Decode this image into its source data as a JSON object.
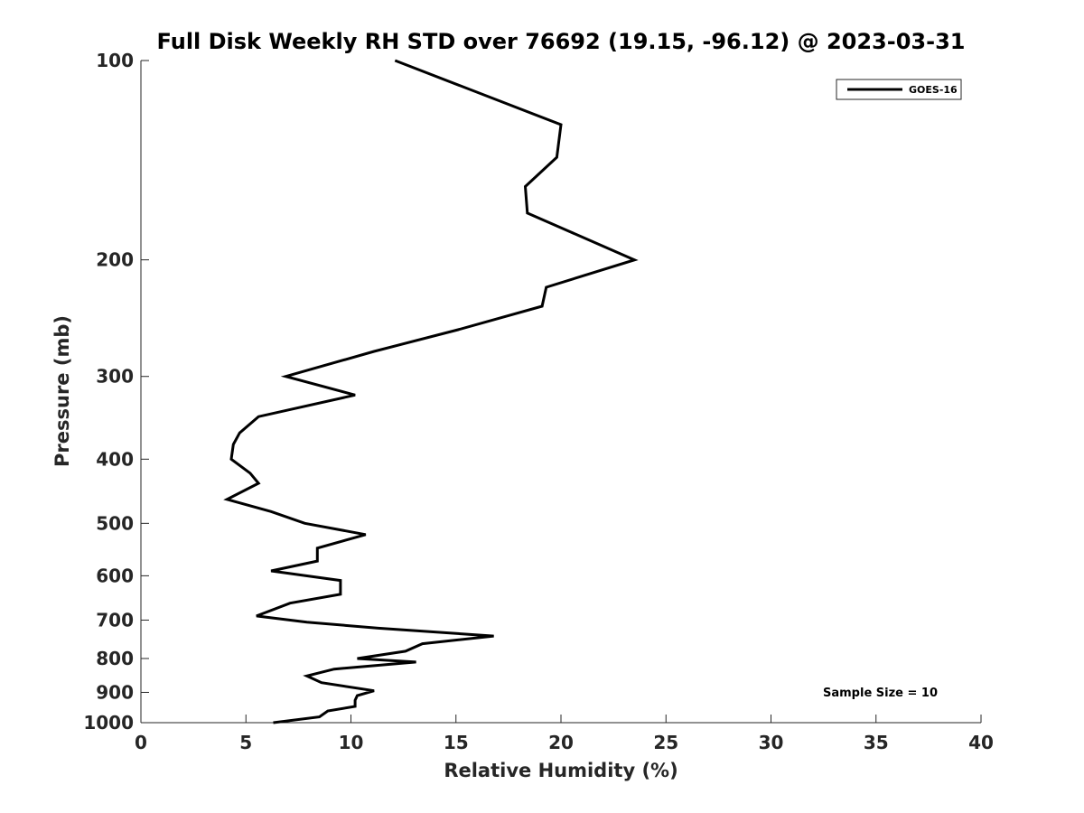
{
  "chart_data": {
    "type": "line",
    "title": "Full Disk Weekly RH STD over 76692 (19.15, -96.12) @ 2023-03-31",
    "xlabel": "Relative Humidity (%)",
    "ylabel": "Pressure (mb)",
    "xlim": [
      0,
      40
    ],
    "ylim": [
      100,
      1000
    ],
    "y_scale": "log",
    "y_reversed": true,
    "x_ticks": [
      "0",
      "5",
      "10",
      "15",
      "20",
      "25",
      "30",
      "35",
      "40"
    ],
    "y_ticks": [
      "100",
      "200",
      "300",
      "400",
      "500",
      "600",
      "700",
      "800",
      "900",
      "1000"
    ],
    "grid": false,
    "legend_position": "top-right",
    "annotation": "Sample Size = 10",
    "series": [
      {
        "name": "GOES-16",
        "color": "#000000",
        "x": [
          12.1,
          20.0,
          19.8,
          18.3,
          18.4,
          23.5,
          19.3,
          19.1,
          15.1,
          11.1,
          6.9,
          10.2,
          5.6,
          4.7,
          4.4,
          4.3,
          5.2,
          5.6,
          4.1,
          6.2,
          7.8,
          10.7,
          8.4,
          8.4,
          6.2,
          9.5,
          9.5,
          7.1,
          5.5,
          7.9,
          11.3,
          16.8,
          13.4,
          12.6,
          10.3,
          13.1,
          9.2,
          7.9,
          8.6,
          11.1,
          10.3,
          10.2,
          10.2,
          8.9,
          8.5,
          6.3
        ],
        "y": [
          100,
          125,
          140,
          155,
          170,
          200,
          220,
          235,
          255,
          275,
          300,
          320,
          345,
          365,
          380,
          400,
          420,
          435,
          460,
          480,
          500,
          520,
          545,
          570,
          590,
          610,
          640,
          660,
          690,
          705,
          720,
          740,
          760,
          780,
          800,
          810,
          830,
          850,
          870,
          895,
          910,
          925,
          945,
          960,
          980,
          1000
        ]
      }
    ]
  }
}
